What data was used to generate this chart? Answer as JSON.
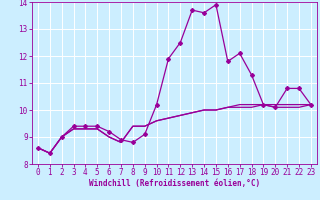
{
  "x": [
    0,
    1,
    2,
    3,
    4,
    5,
    6,
    7,
    8,
    9,
    10,
    11,
    12,
    13,
    14,
    15,
    16,
    17,
    18,
    19,
    20,
    21,
    22,
    23
  ],
  "line1": [
    8.6,
    8.4,
    9.0,
    9.4,
    9.4,
    9.4,
    9.2,
    8.9,
    8.8,
    9.1,
    10.2,
    11.9,
    12.5,
    13.7,
    13.6,
    13.9,
    11.8,
    12.1,
    11.3,
    10.2,
    10.1,
    10.8,
    10.8,
    10.2
  ],
  "line2": [
    8.6,
    8.4,
    9.0,
    9.3,
    9.3,
    9.3,
    9.0,
    8.8,
    9.4,
    9.4,
    9.6,
    9.7,
    9.8,
    9.9,
    10.0,
    10.0,
    10.1,
    10.1,
    10.1,
    10.2,
    10.1,
    10.1,
    10.1,
    10.2
  ],
  "line3": [
    8.6,
    8.4,
    9.0,
    9.3,
    9.3,
    9.3,
    9.0,
    8.8,
    9.4,
    9.4,
    9.6,
    9.7,
    9.8,
    9.9,
    10.0,
    10.0,
    10.1,
    10.2,
    10.2,
    10.2,
    10.2,
    10.2,
    10.2,
    10.2
  ],
  "ylim": [
    8,
    14
  ],
  "xlim_min": -0.5,
  "xlim_max": 23.5,
  "yticks": [
    8,
    9,
    10,
    11,
    12,
    13,
    14
  ],
  "xticks": [
    0,
    1,
    2,
    3,
    4,
    5,
    6,
    7,
    8,
    9,
    10,
    11,
    12,
    13,
    14,
    15,
    16,
    17,
    18,
    19,
    20,
    21,
    22,
    23
  ],
  "xlabel": "Windchill (Refroidissement éolien,°C)",
  "line_color": "#990099",
  "bg_color": "#cceeff",
  "grid_color": "#ffffff",
  "marker": "D",
  "marker_size": 2.0,
  "line_width": 0.9,
  "tick_fontsize": 5.5,
  "label_fontsize": 5.5
}
